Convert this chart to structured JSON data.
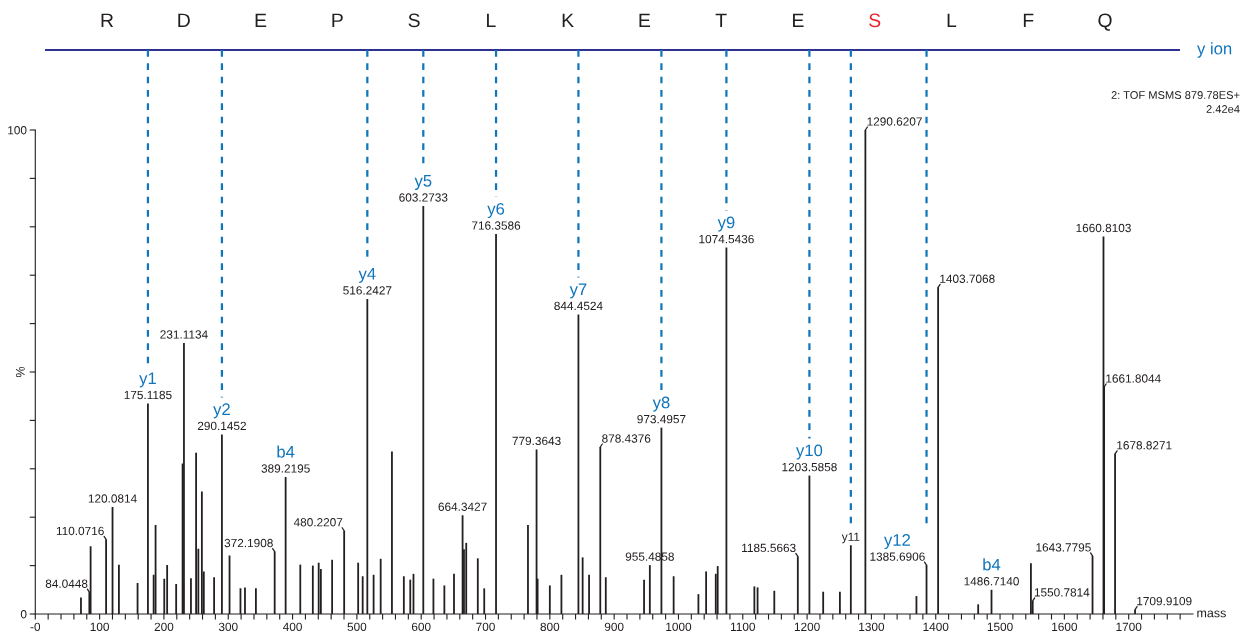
{
  "chart_data": [
    {
      "type": "other",
      "categories": [
        "R",
        "D",
        "E",
        "P",
        "S",
        "L",
        "K",
        "E",
        "T",
        "E",
        "S",
        "L",
        "F",
        "Q"
      ],
      "colors": [
        "#231f20",
        "#231f20",
        "#231f20",
        "#231f20",
        "#231f20",
        "#231f20",
        "#231f20",
        "#231f20",
        "#231f20",
        "#231f20",
        "#e8202a",
        "#231f20",
        "#231f20",
        "#231f20"
      ],
      "annotations": [
        "y ion"
      ]
    },
    {
      "type": "bar",
      "xlabel": "mass",
      "ylabel": "%",
      "xlim": [
        0,
        1800
      ],
      "ylim": [
        0,
        100
      ],
      "xticks": [
        {
          "value": 0,
          "label": "-0"
        },
        {
          "value": 20,
          "label": null
        },
        {
          "value": 40,
          "label": null
        },
        {
          "value": 60,
          "label": null
        },
        {
          "value": 80,
          "label": null
        },
        100,
        {
          "value": 120,
          "label": null
        },
        {
          "value": 140,
          "label": null
        },
        {
          "value": 160,
          "label": null
        },
        {
          "value": 180,
          "label": null
        },
        200,
        {
          "value": 220,
          "label": null
        },
        {
          "value": 240,
          "label": null
        },
        {
          "value": 260,
          "label": null
        },
        {
          "value": 280,
          "label": null
        },
        300,
        {
          "value": 320,
          "label": null
        },
        {
          "value": 340,
          "label": null
        },
        {
          "value": 360,
          "label": null
        },
        {
          "value": 380,
          "label": null
        },
        400,
        {
          "value": 420,
          "label": null
        },
        {
          "value": 440,
          "label": null
        },
        {
          "value": 460,
          "label": null
        },
        {
          "value": 480,
          "label": null
        },
        500,
        {
          "value": 520,
          "label": null
        },
        {
          "value": 540,
          "label": null
        },
        {
          "value": 560,
          "label": null
        },
        {
          "value": 580,
          "label": null
        },
        600,
        {
          "value": 620,
          "label": null
        },
        {
          "value": 640,
          "label": null
        },
        {
          "value": 660,
          "label": null
        },
        {
          "value": 680,
          "label": null
        },
        700,
        {
          "value": 720,
          "label": null
        },
        {
          "value": 740,
          "label": null
        },
        {
          "value": 760,
          "label": null
        },
        {
          "value": 780,
          "label": null
        },
        800,
        {
          "value": 820,
          "label": null
        },
        {
          "value": 840,
          "label": null
        },
        {
          "value": 860,
          "label": null
        },
        {
          "value": 880,
          "label": null
        },
        900,
        {
          "value": 920,
          "label": null
        },
        {
          "value": 940,
          "label": null
        },
        {
          "value": 960,
          "label": null
        },
        {
          "value": 980,
          "label": null
        },
        1000,
        {
          "value": 1020,
          "label": null
        },
        {
          "value": 1040,
          "label": null
        },
        {
          "value": 1060,
          "label": null
        },
        {
          "value": 1080,
          "label": null
        },
        1100,
        {
          "value": 1120,
          "label": null
        },
        {
          "value": 1140,
          "label": null
        },
        {
          "value": 1160,
          "label": null
        },
        {
          "value": 1180,
          "label": null
        },
        1200,
        {
          "value": 1220,
          "label": null
        },
        {
          "value": 1240,
          "label": null
        },
        {
          "value": 1260,
          "label": null
        },
        {
          "value": 1280,
          "label": null
        },
        1300,
        {
          "value": 1320,
          "label": null
        },
        {
          "value": 1340,
          "label": null
        },
        {
          "value": 1360,
          "label": null
        },
        {
          "value": 1380,
          "label": null
        },
        1400,
        {
          "value": 1420,
          "label": null
        },
        {
          "value": 1440,
          "label": null
        },
        {
          "value": 1460,
          "label": null
        },
        {
          "value": 1480,
          "label": null
        },
        1500,
        {
          "value": 1520,
          "label": null
        },
        {
          "value": 1540,
          "label": null
        },
        {
          "value": 1560,
          "label": null
        },
        {
          "value": 1580,
          "label": null
        },
        1600,
        {
          "value": 1620,
          "label": null
        },
        {
          "value": 1640,
          "label": null
        },
        {
          "value": 1660,
          "label": null
        },
        {
          "value": 1680,
          "label": null
        },
        1700,
        {
          "value": 1720,
          "label": null
        },
        {
          "value": 1740,
          "label": null
        },
        {
          "value": 1760,
          "label": null
        },
        {
          "value": 1780,
          "label": null
        }
      ],
      "yticks": [
        0,
        {
          "value": 10,
          "label": null
        },
        {
          "value": 20,
          "label": null
        },
        {
          "value": 30,
          "label": null
        },
        {
          "value": 40,
          "label": null
        },
        {
          "value": 50,
          "label": null
        },
        {
          "value": 60,
          "label": null
        },
        {
          "value": 70,
          "label": null
        },
        {
          "value": 80,
          "label": null
        },
        {
          "value": 90,
          "label": null
        },
        100
      ],
      "series": [
        {
          "color": "#231f20",
          "x": [
            71,
            84.0448,
            86,
            110.0716,
            120.0814,
            130,
            159,
            175.1185,
            184,
            187,
            200.5,
            205,
            219,
            229,
            231.1134,
            242,
            250,
            253.5,
            259,
            262,
            278,
            290.1452,
            302,
            319,
            326,
            343,
            372.1908,
            389.2195,
            412,
            431.5,
            440.6,
            444,
            461.5,
            480.2207,
            502,
            509,
            516.2427,
            526,
            537,
            554.5,
            573,
            583,
            588,
            603.2733,
            619,
            636,
            651,
            664.3427,
            666.5,
            670,
            688,
            698,
            716.3586,
            766,
            779.3643,
            781,
            800,
            818,
            844.4524,
            851,
            861,
            878.4376,
            887,
            946.5,
            955.4858,
            973.4957,
            992.5,
            1031,
            1043,
            1058,
            1061,
            1074.5436,
            1118,
            1123,
            1149,
            1185.5663,
            1203.5858,
            1225,
            1251,
            1268,
            1290.6207,
            1370,
            1385.6906,
            1403.7068,
            1466,
            1486.714,
            1548,
            1550.7814,
            1643.7795,
            1660.8103,
            1661.8044,
            1678.8271,
            1709.9109
          ],
          "values": [
            3.4,
            4.5,
            14.0,
            15.4,
            22.1,
            10.2,
            6.4,
            43.5,
            8.1,
            18.4,
            7.3,
            10.1,
            6.2,
            31.1,
            56.0,
            7.4,
            33.3,
            13.5,
            25.3,
            8.8,
            7.6,
            37.1,
            12.1,
            5.3,
            5.5,
            5.3,
            12.9,
            28.3,
            10.2,
            10.0,
            10.6,
            9.3,
            11.2,
            17.2,
            10.6,
            7.8,
            65.1,
            8.1,
            11.4,
            33.6,
            7.8,
            7.1,
            8.3,
            84.3,
            7.3,
            5.9,
            8.3,
            20.4,
            13.4,
            14.7,
            11.5,
            5.3,
            78.5,
            18.4,
            34.0,
            7.3,
            5.9,
            8.1,
            61.9,
            11.7,
            8.1,
            34.5,
            7.6,
            7.1,
            10.1,
            38.5,
            7.8,
            4.1,
            8.8,
            8.3,
            9.9,
            75.7,
            5.7,
            5.5,
            4.8,
            11.9,
            28.6,
            4.6,
            4.6,
            14.2,
            100,
            3.7,
            10.1,
            67.5,
            2.0,
            5.0,
            10.5,
            2.7,
            12.0,
            78.0,
            46.9,
            33.1,
            0.9
          ]
        }
      ],
      "ref_lines": [
        {
          "axis": "x",
          "value": 175.1185,
          "color": "#0f75bc",
          "line_style": "dashed"
        },
        {
          "axis": "x",
          "value": 290.1452,
          "color": "#0f75bc",
          "line_style": "dashed"
        },
        {
          "axis": "x",
          "value": 516.2427,
          "color": "#0f75bc",
          "line_style": "dashed"
        },
        {
          "axis": "x",
          "value": 603.2733,
          "color": "#0f75bc",
          "line_style": "dashed"
        },
        {
          "axis": "x",
          "value": 716.3586,
          "color": "#0f75bc",
          "line_style": "dashed"
        },
        {
          "axis": "x",
          "value": 844.4524,
          "color": "#0f75bc",
          "line_style": "dashed"
        },
        {
          "axis": "x",
          "value": 973.4957,
          "color": "#0f75bc",
          "line_style": "dashed"
        },
        {
          "axis": "x",
          "value": 1074.5436,
          "color": "#0f75bc",
          "line_style": "dashed"
        },
        {
          "axis": "x",
          "value": 1203.5858,
          "color": "#0f75bc",
          "line_style": "dashed"
        },
        {
          "axis": "x",
          "value": 1268,
          "color": "#0f75bc",
          "line_style": "dashed"
        },
        {
          "axis": "x",
          "value": 1385.6906,
          "color": "#0f75bc",
          "line_style": "dashed"
        }
      ],
      "annotations": [
        "2: TOF MSMS 879.78ES+",
        "2.42e4",
        {
          "text": "84.0448",
          "x": 84.0448,
          "y": 4.5
        },
        {
          "text": "110.0716",
          "x": 110.0716,
          "y": 15.4
        },
        {
          "text": "120.0814",
          "x": 120.0814,
          "y": 22.1
        },
        {
          "text": "175.1185",
          "x": 175.1185,
          "y": 43.5
        },
        {
          "text": "y1",
          "x": 175.1185,
          "y": 43.5
        },
        {
          "text": "231.1134",
          "x": 231.1134,
          "y": 56.0
        },
        {
          "text": "290.1452",
          "x": 290.1452,
          "y": 37.1
        },
        {
          "text": "y2",
          "x": 290.1452,
          "y": 37.1
        },
        {
          "text": "372.1908",
          "x": 372.1908,
          "y": 12.9
        },
        {
          "text": "389.2195",
          "x": 389.2195,
          "y": 28.3
        },
        {
          "text": "b4",
          "x": 389.2195,
          "y": 28.3
        },
        {
          "text": "480.2207",
          "x": 480.2207,
          "y": 17.2
        },
        {
          "text": "516.2427",
          "x": 516.2427,
          "y": 65.1
        },
        {
          "text": "y4",
          "x": 516.2427,
          "y": 65.1
        },
        {
          "text": "603.2733",
          "x": 603.2733,
          "y": 84.3
        },
        {
          "text": "y5",
          "x": 603.2733,
          "y": 84.3
        },
        {
          "text": "664.3427",
          "x": 664.3427,
          "y": 20.4
        },
        {
          "text": "716.3586",
          "x": 716.3586,
          "y": 78.5
        },
        {
          "text": "y6",
          "x": 716.3586,
          "y": 78.5
        },
        {
          "text": "779.3643",
          "x": 779.3643,
          "y": 34.0
        },
        {
          "text": "844.4524",
          "x": 844.4524,
          "y": 61.9
        },
        {
          "text": "y7",
          "x": 844.4524,
          "y": 61.9
        },
        {
          "text": "878.4376",
          "x": 878.4376,
          "y": 34.5
        },
        {
          "text": "955.4858",
          "x": 955.4858,
          "y": 10.1
        },
        {
          "text": "973.4957",
          "x": 973.4957,
          "y": 38.5
        },
        {
          "text": "y8",
          "x": 973.4957,
          "y": 38.5
        },
        {
          "text": "1074.5436",
          "x": 1074.5436,
          "y": 75.7
        },
        {
          "text": "y9",
          "x": 1074.5436,
          "y": 75.7
        },
        {
          "text": "1185.5663",
          "x": 1185.5663,
          "y": 11.9
        },
        {
          "text": "1203.5858",
          "x": 1203.5858,
          "y": 28.6
        },
        {
          "text": "y10",
          "x": 1203.5858,
          "y": 28.6
        },
        {
          "text": "y11",
          "x": 1268,
          "y": 14.2
        },
        {
          "text": "1290.6207",
          "x": 1290.6207,
          "y": 100
        },
        {
          "text": "1385.6906",
          "x": 1385.6906,
          "y": 10.1
        },
        {
          "text": "y12",
          "x": 1385.6906,
          "y": 10.1
        },
        {
          "text": "1403.7068",
          "x": 1403.7068,
          "y": 67.5
        },
        {
          "text": "1486.7140",
          "x": 1486.714,
          "y": 5.0
        },
        {
          "text": "b4",
          "x": 1486.714,
          "y": 5.0
        },
        {
          "text": "1550.7814",
          "x": 1550.7814,
          "y": 2.7
        },
        {
          "text": "1643.7795",
          "x": 1643.7795,
          "y": 12.0
        },
        {
          "text": "1660.8103",
          "x": 1660.8103,
          "y": 78.0
        },
        {
          "text": "1661.8044",
          "x": 1661.8044,
          "y": 46.9
        },
        {
          "text": "1678.8271",
          "x": 1678.8271,
          "y": 33.1
        },
        {
          "text": "1709.9109",
          "x": 1709.9109,
          "y": 0.9
        }
      ]
    }
  ]
}
